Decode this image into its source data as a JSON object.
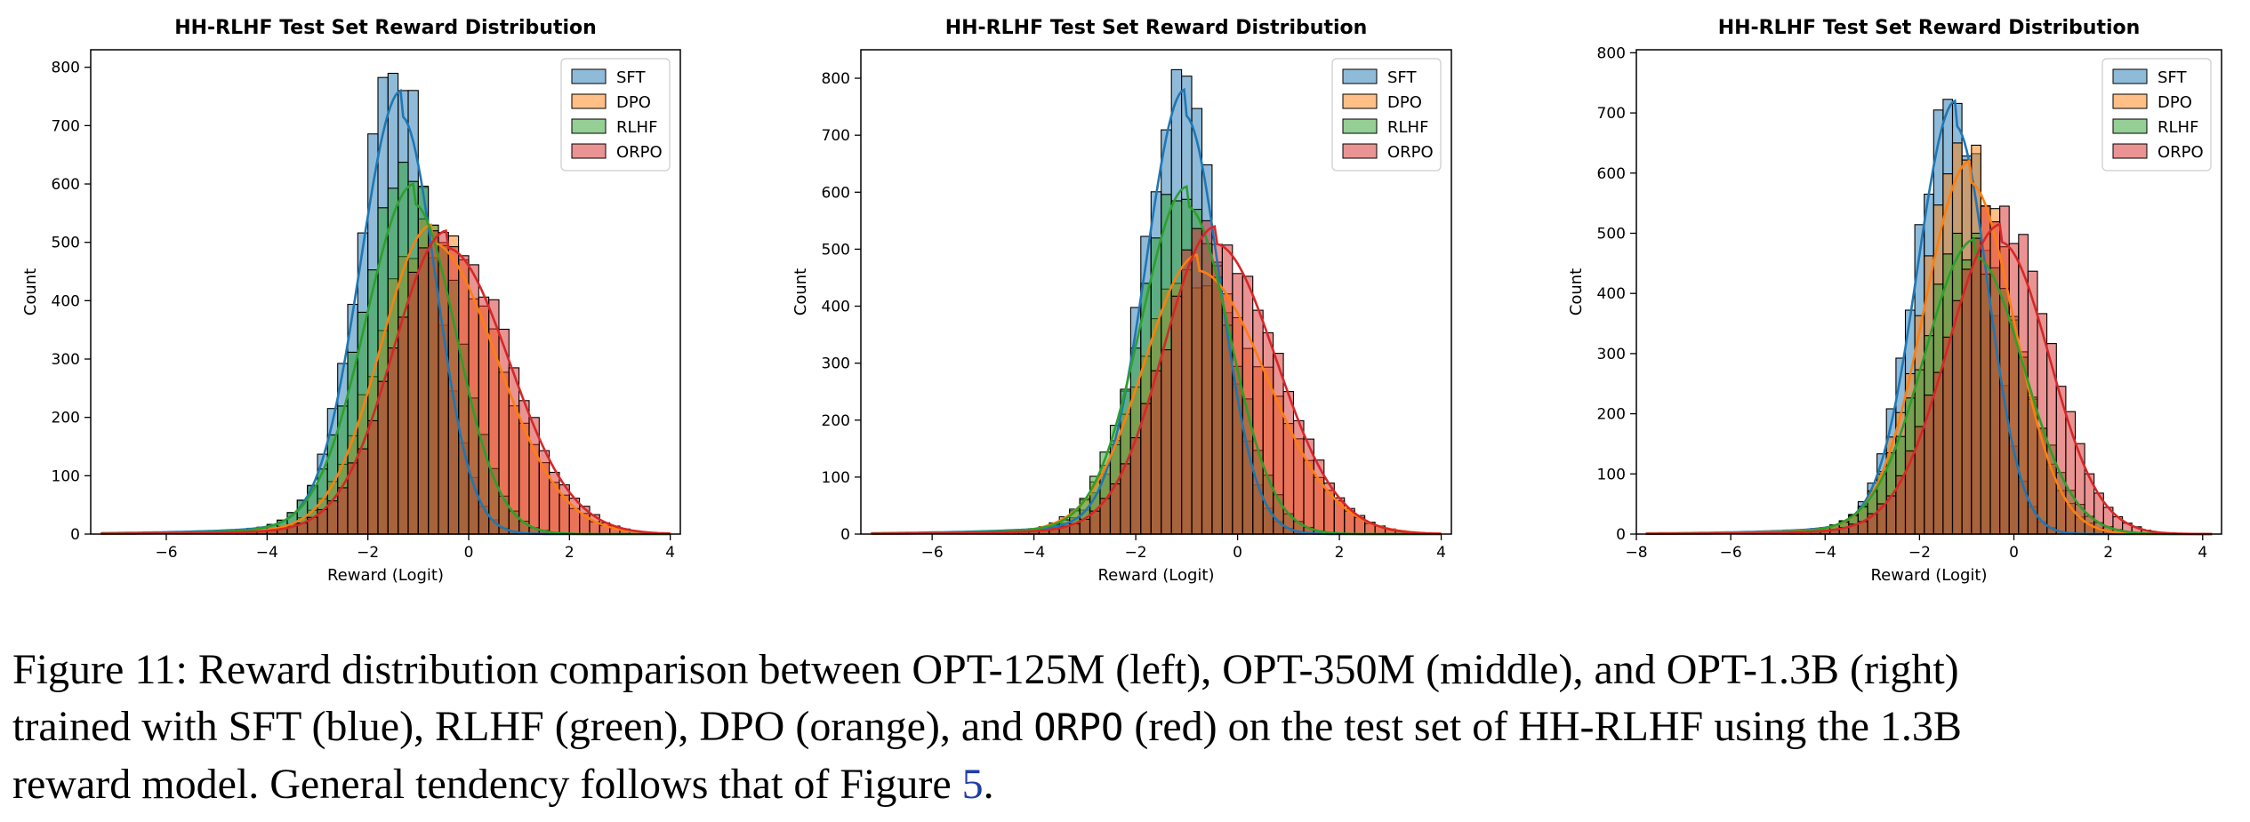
{
  "chart_data": [
    {
      "type": "bar",
      "title": "HH-RLHF Test Set Reward Distribution",
      "xlabel": "Reward (Logit)",
      "ylabel": "Count",
      "xlim": [
        -7.5,
        4.2
      ],
      "ylim": [
        0,
        830
      ],
      "xticks": [
        -6,
        -4,
        -2,
        0,
        2,
        4
      ],
      "yticks": [
        0,
        100,
        200,
        300,
        400,
        500,
        600,
        700,
        800
      ],
      "legend_position": "top-right",
      "series": [
        {
          "name": "SFT",
          "color": "#1f77b4",
          "peak_x": -1.4,
          "peak_count": 800,
          "kde_peak": 760,
          "kde_mean": -1.35,
          "kde_sd_left": 0.8,
          "kde_sd_right": 0.7
        },
        {
          "name": "DPO",
          "color": "#ff7f0e",
          "peak_x": -0.7,
          "peak_count": 540,
          "kde_peak": 530,
          "kde_mean": -0.75,
          "kde_sd_left": 1.0,
          "kde_sd_right": 1.3
        },
        {
          "name": "RLHF",
          "color": "#2ca02c",
          "peak_x": -1.1,
          "peak_count": 650,
          "kde_peak": 600,
          "kde_mean": -1.1,
          "kde_sd_left": 0.95,
          "kde_sd_right": 0.85
        },
        {
          "name": "ORPO",
          "color": "#d62728",
          "peak_x": -0.4,
          "peak_count": 530,
          "kde_peak": 520,
          "kde_mean": -0.45,
          "kde_sd_left": 1.05,
          "kde_sd_right": 1.25
        }
      ]
    },
    {
      "type": "bar",
      "title": "HH-RLHF Test Set Reward Distribution",
      "xlabel": "Reward (Logit)",
      "ylabel": "Count",
      "xlim": [
        -7.4,
        4.2
      ],
      "ylim": [
        0,
        850
      ],
      "xticks": [
        -6,
        -4,
        -2,
        0,
        2,
        4
      ],
      "yticks": [
        0,
        100,
        200,
        300,
        400,
        500,
        600,
        700,
        800
      ],
      "legend_position": "top-right",
      "series": [
        {
          "name": "SFT",
          "color": "#1f77b4",
          "peak_x": -1.1,
          "peak_count": 815,
          "kde_peak": 780,
          "kde_mean": -1.05,
          "kde_sd_left": 0.75,
          "kde_sd_right": 0.7
        },
        {
          "name": "DPO",
          "color": "#ff7f0e",
          "peak_x": -0.8,
          "peak_count": 490,
          "kde_peak": 490,
          "kde_mean": -0.8,
          "kde_sd_left": 1.05,
          "kde_sd_right": 1.35
        },
        {
          "name": "RLHF",
          "color": "#2ca02c",
          "peak_x": -1.0,
          "peak_count": 640,
          "kde_peak": 610,
          "kde_mean": -1.0,
          "kde_sd_left": 0.9,
          "kde_sd_right": 0.85
        },
        {
          "name": "ORPO",
          "color": "#d62728",
          "peak_x": -0.4,
          "peak_count": 550,
          "kde_peak": 540,
          "kde_mean": -0.45,
          "kde_sd_left": 1.0,
          "kde_sd_right": 1.2
        }
      ]
    },
    {
      "type": "bar",
      "title": "HH-RLHF Test Set Reward Distribution",
      "xlabel": "Reward (Logit)",
      "ylabel": "Count",
      "xlim": [
        -8.0,
        4.4
      ],
      "ylim": [
        0,
        805
      ],
      "xticks": [
        -8,
        -6,
        -4,
        -2,
        0,
        2,
        4
      ],
      "yticks": [
        0,
        100,
        200,
        300,
        400,
        500,
        600,
        700,
        800
      ],
      "legend_position": "top-right",
      "series": [
        {
          "name": "SFT",
          "color": "#1f77b4",
          "peak_x": -1.3,
          "peak_count": 765,
          "kde_peak": 720,
          "kde_mean": -1.25,
          "kde_sd_left": 0.8,
          "kde_sd_right": 0.7
        },
        {
          "name": "DPO",
          "color": "#ff7f0e",
          "peak_x": -1.0,
          "peak_count": 650,
          "kde_peak": 620,
          "kde_mean": -0.95,
          "kde_sd_left": 0.95,
          "kde_sd_right": 0.95
        },
        {
          "name": "RLHF",
          "color": "#2ca02c",
          "peak_x": -0.9,
          "peak_count": 500,
          "kde_peak": 490,
          "kde_mean": -0.85,
          "kde_sd_left": 1.05,
          "kde_sd_right": 1.05
        },
        {
          "name": "ORPO",
          "color": "#d62728",
          "peak_x": -0.1,
          "peak_count": 545,
          "kde_peak": 515,
          "kde_mean": -0.3,
          "kde_sd_left": 1.1,
          "kde_sd_right": 1.05
        }
      ]
    }
  ],
  "caption": {
    "line1": "Figure 11: Reward distribution comparison between OPT-125M (left), OPT-350M (middle), and OPT-1.3B (right)",
    "line2_a": "trained with SFT (blue), RLHF (green), DPO (orange), and ",
    "line2_mono": "ORPO",
    "line2_b": " (red) on the test set of HH-RLHF using the 1.3B",
    "line3_a": "reward model. General tendency follows that of Figure ",
    "line3_ref": "5",
    "line3_b": "."
  }
}
